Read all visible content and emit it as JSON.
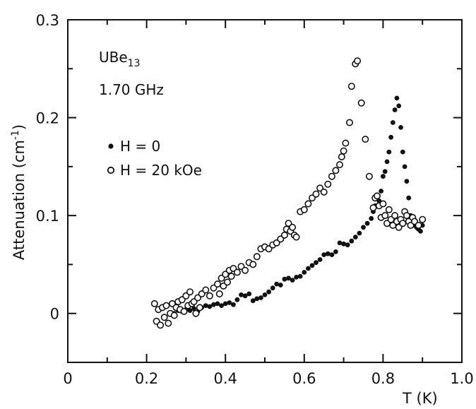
{
  "chart_data": {
    "type": "scatter",
    "xlabel": "T (K)",
    "ylabel": "Attenuation (cm",
    "ylabel_sup": "-1",
    "ylabel_close": ")",
    "xlim": [
      0,
      1.0
    ],
    "ylim": [
      -0.05,
      0.3
    ],
    "x_ticks": [
      0,
      0.2,
      0.4,
      0.6,
      0.8,
      1.0
    ],
    "x_tick_labels": [
      "0",
      "0.2",
      "0.4",
      "0.6",
      "0.8",
      "1.0"
    ],
    "y_ticks": [
      0,
      0.1,
      0.2,
      0.3
    ],
    "y_tick_labels": [
      "0",
      "0.1",
      "0.2",
      "0.3"
    ],
    "grid": false,
    "annotations": {
      "compound_main": "UBe",
      "compound_sub": "13",
      "frequency": "1.70 GHz"
    },
    "legend_position": "upper-left",
    "series": [
      {
        "name": "H = 0",
        "marker": "filled-circle",
        "color": "#111111",
        "points": [
          [
            0.27,
            0.0
          ],
          [
            0.28,
            0.003
          ],
          [
            0.29,
            0.002
          ],
          [
            0.3,
            0.004
          ],
          [
            0.31,
            0.003
          ],
          [
            0.32,
            0.005
          ],
          [
            0.33,
            0.002
          ],
          [
            0.34,
            0.006
          ],
          [
            0.35,
            0.008
          ],
          [
            0.36,
            0.007
          ],
          [
            0.37,
            0.009
          ],
          [
            0.38,
            0.01
          ],
          [
            0.39,
            0.008
          ],
          [
            0.4,
            0.01
          ],
          [
            0.41,
            0.011
          ],
          [
            0.42,
            0.009
          ],
          [
            0.43,
            0.014
          ],
          [
            0.44,
            0.019
          ],
          [
            0.45,
            0.018
          ],
          [
            0.46,
            0.02
          ],
          [
            0.47,
            0.013
          ],
          [
            0.48,
            0.015
          ],
          [
            0.49,
            0.016
          ],
          [
            0.5,
            0.019
          ],
          [
            0.51,
            0.022
          ],
          [
            0.52,
            0.026
          ],
          [
            0.53,
            0.03
          ],
          [
            0.54,
            0.029
          ],
          [
            0.55,
            0.035
          ],
          [
            0.56,
            0.036
          ],
          [
            0.57,
            0.034
          ],
          [
            0.58,
            0.037
          ],
          [
            0.59,
            0.038
          ],
          [
            0.6,
            0.042
          ],
          [
            0.61,
            0.046
          ],
          [
            0.62,
            0.049
          ],
          [
            0.63,
            0.052
          ],
          [
            0.64,
            0.055
          ],
          [
            0.65,
            0.06
          ],
          [
            0.66,
            0.061
          ],
          [
            0.67,
            0.06
          ],
          [
            0.68,
            0.063
          ],
          [
            0.69,
            0.072
          ],
          [
            0.7,
            0.071
          ],
          [
            0.71,
            0.07
          ],
          [
            0.72,
            0.074
          ],
          [
            0.73,
            0.078
          ],
          [
            0.74,
            0.082
          ],
          [
            0.75,
            0.088
          ],
          [
            0.76,
            0.092
          ],
          [
            0.77,
            0.097
          ],
          [
            0.775,
            0.104
          ],
          [
            0.78,
            0.11
          ],
          [
            0.785,
            0.118
          ],
          [
            0.79,
            0.115
          ],
          [
            0.795,
            0.125
          ],
          [
            0.8,
            0.14
          ],
          [
            0.805,
            0.145
          ],
          [
            0.81,
            0.155
          ],
          [
            0.815,
            0.165
          ],
          [
            0.82,
            0.18
          ],
          [
            0.825,
            0.195
          ],
          [
            0.83,
            0.208
          ],
          [
            0.835,
            0.22
          ],
          [
            0.84,
            0.212
          ],
          [
            0.845,
            0.19
          ],
          [
            0.85,
            0.165
          ],
          [
            0.855,
            0.15
          ],
          [
            0.86,
            0.135
          ],
          [
            0.865,
            0.118
          ],
          [
            0.87,
            0.1
          ],
          [
            0.875,
            0.094
          ],
          [
            0.88,
            0.09
          ],
          [
            0.885,
            0.088
          ],
          [
            0.89,
            0.086
          ],
          [
            0.895,
            0.084
          ],
          [
            0.9,
            0.09
          ]
        ]
      },
      {
        "name": "H = 20 kOe",
        "marker": "open-circle",
        "color": "#111111",
        "points": [
          [
            0.22,
            0.01
          ],
          [
            0.225,
            -0.008
          ],
          [
            0.23,
            0.004
          ],
          [
            0.235,
            -0.012
          ],
          [
            0.24,
            0.006
          ],
          [
            0.245,
            -0.004
          ],
          [
            0.25,
            0.008
          ],
          [
            0.255,
            -0.01
          ],
          [
            0.26,
            0.0
          ],
          [
            0.265,
            0.01
          ],
          [
            0.27,
            -0.002
          ],
          [
            0.275,
            0.006
          ],
          [
            0.28,
            0.012
          ],
          [
            0.285,
            0.004
          ],
          [
            0.29,
            0.014
          ],
          [
            0.295,
            0.002
          ],
          [
            0.3,
            0.018
          ],
          [
            0.305,
            0.008
          ],
          [
            0.31,
            0.022
          ],
          [
            0.315,
            0.01
          ],
          [
            0.32,
            0.012
          ],
          [
            0.325,
            0.0
          ],
          [
            0.33,
            0.016
          ],
          [
            0.335,
            0.006
          ],
          [
            0.34,
            0.02
          ],
          [
            0.35,
            0.024
          ],
          [
            0.36,
            0.018
          ],
          [
            0.37,
            0.026
          ],
          [
            0.38,
            0.03
          ],
          [
            0.385,
            0.02
          ],
          [
            0.39,
            0.036
          ],
          [
            0.395,
            0.028
          ],
          [
            0.4,
            0.04
          ],
          [
            0.405,
            0.032
          ],
          [
            0.41,
            0.044
          ],
          [
            0.415,
            0.038
          ],
          [
            0.42,
            0.046
          ],
          [
            0.43,
            0.042
          ],
          [
            0.44,
            0.048
          ],
          [
            0.45,
            0.044
          ],
          [
            0.46,
            0.052
          ],
          [
            0.47,
            0.05
          ],
          [
            0.48,
            0.058
          ],
          [
            0.49,
            0.066
          ],
          [
            0.5,
            0.068
          ],
          [
            0.51,
            0.066
          ],
          [
            0.52,
            0.07
          ],
          [
            0.53,
            0.072
          ],
          [
            0.54,
            0.076
          ],
          [
            0.55,
            0.08
          ],
          [
            0.555,
            0.086
          ],
          [
            0.56,
            0.092
          ],
          [
            0.565,
            0.084
          ],
          [
            0.57,
            0.088
          ],
          [
            0.575,
            0.08
          ],
          [
            0.58,
            0.078
          ],
          [
            0.59,
            0.104
          ],
          [
            0.6,
            0.106
          ],
          [
            0.61,
            0.112
          ],
          [
            0.62,
            0.118
          ],
          [
            0.63,
            0.122
          ],
          [
            0.64,
            0.128
          ],
          [
            0.65,
            0.124
          ],
          [
            0.66,
            0.132
          ],
          [
            0.67,
            0.14
          ],
          [
            0.68,
            0.146
          ],
          [
            0.69,
            0.152
          ],
          [
            0.695,
            0.16
          ],
          [
            0.7,
            0.166
          ],
          [
            0.705,
            0.174
          ],
          [
            0.715,
            0.195
          ],
          [
            0.72,
            0.232
          ],
          [
            0.73,
            0.255
          ],
          [
            0.735,
            0.258
          ],
          [
            0.745,
            0.215
          ],
          [
            0.755,
            0.178
          ],
          [
            0.765,
            0.14
          ],
          [
            0.775,
            0.108
          ],
          [
            0.78,
            0.118
          ],
          [
            0.785,
            0.12
          ],
          [
            0.79,
            0.11
          ],
          [
            0.795,
            0.098
          ],
          [
            0.8,
            0.112
          ],
          [
            0.805,
            0.1
          ],
          [
            0.81,
            0.092
          ],
          [
            0.815,
            0.106
          ],
          [
            0.82,
            0.096
          ],
          [
            0.825,
            0.09
          ],
          [
            0.83,
            0.1
          ],
          [
            0.835,
            0.094
          ],
          [
            0.84,
            0.088
          ],
          [
            0.845,
            0.096
          ],
          [
            0.85,
            0.092
          ],
          [
            0.855,
            0.104
          ],
          [
            0.86,
            0.1
          ],
          [
            0.865,
            0.094
          ],
          [
            0.87,
            0.09
          ],
          [
            0.875,
            0.098
          ],
          [
            0.88,
            0.094
          ],
          [
            0.89,
            0.09
          ],
          [
            0.9,
            0.096
          ]
        ]
      }
    ]
  }
}
